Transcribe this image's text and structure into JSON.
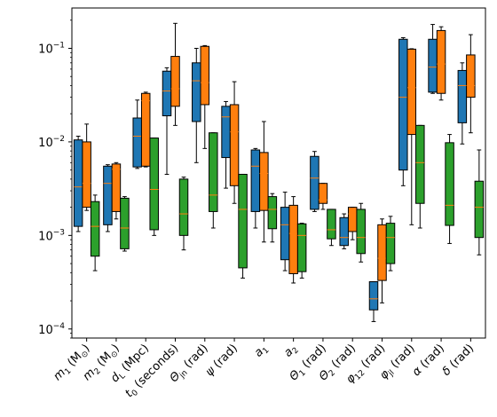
{
  "chart_data": {
    "type": "box",
    "y_scale": "log",
    "ylim": [
      8e-05,
      0.27
    ],
    "y_ticks": [
      {
        "value": 0.0001,
        "base": "10",
        "exp": "−4"
      },
      {
        "value": 0.001,
        "base": "10",
        "exp": "−3"
      },
      {
        "value": 0.01,
        "base": "10",
        "exp": "−2"
      },
      {
        "value": 0.1,
        "base": "10",
        "exp": "−1"
      }
    ],
    "categories": [
      {
        "main": "m",
        "sub": "1",
        "rest": " (M",
        "rest_sub": "⊙",
        "tail": ")"
      },
      {
        "main": "m",
        "sub": "2",
        "rest": " (M",
        "rest_sub": "⊙",
        "tail": ")"
      },
      {
        "main": "d",
        "sub": "L",
        "rest": " (Mpc)",
        "rest_sub": "",
        "tail": ""
      },
      {
        "main": "t",
        "sub": "0",
        "rest": " (seconds)",
        "rest_sub": "",
        "tail": ""
      },
      {
        "main": "Θ",
        "sub": "jn",
        "rest": " (rad)",
        "rest_sub": "",
        "tail": ""
      },
      {
        "main": "ψ",
        "sub": "",
        "rest": " (rad)",
        "rest_sub": "",
        "tail": ""
      },
      {
        "main": "a",
        "sub": "1",
        "rest": "",
        "rest_sub": "",
        "tail": ""
      },
      {
        "main": "a",
        "sub": "2",
        "rest": "",
        "rest_sub": "",
        "tail": ""
      },
      {
        "main": "Θ",
        "sub": "1",
        "rest": " (rad)",
        "rest_sub": "",
        "tail": ""
      },
      {
        "main": "Θ",
        "sub": "2",
        "rest": " (rad)",
        "rest_sub": "",
        "tail": ""
      },
      {
        "main": "φ",
        "sub": "12",
        "rest": " (rad)",
        "rest_sub": "",
        "tail": ""
      },
      {
        "main": "φ",
        "sub": "jl",
        "rest": " (rad)",
        "rest_sub": "",
        "tail": ""
      },
      {
        "main": "α",
        "sub": "",
        "rest": " (rad)",
        "rest_sub": "",
        "tail": ""
      },
      {
        "main": "δ",
        "sub": "",
        "rest": " (rad)",
        "rest_sub": "",
        "tail": ""
      }
    ],
    "colors": {
      "blue": "#1f77b4",
      "orange": "#ff7f0e",
      "green": "#2ca02c"
    },
    "series": [
      {
        "color_key": "blue",
        "boxes": [
          {
            "whislo": 0.0011,
            "q1": 0.00125,
            "med": 0.0033,
            "q3": 0.0105,
            "whishi": 0.0115
          },
          {
            "whislo": 0.0011,
            "q1": 0.0013,
            "med": 0.0036,
            "q3": 0.0055,
            "whishi": 0.0057
          },
          {
            "whislo": 0.0052,
            "q1": 0.0054,
            "med": 0.0115,
            "q3": 0.018,
            "whishi": 0.028
          },
          {
            "whislo": 0.0045,
            "q1": 0.019,
            "med": 0.035,
            "q3": 0.057,
            "whishi": 0.062
          },
          {
            "whislo": 0.006,
            "q1": 0.0165,
            "med": 0.045,
            "q3": 0.07,
            "whishi": 0.1
          },
          {
            "whislo": 0.0032,
            "q1": 0.0068,
            "med": 0.0185,
            "q3": 0.024,
            "whishi": 0.027
          },
          {
            "whislo": 0.0012,
            "q1": 0.0018,
            "med": 0.0055,
            "q3": 0.0082,
            "whishi": 0.0085
          },
          {
            "whislo": 0.00042,
            "q1": 0.00055,
            "med": 0.0013,
            "q3": 0.002,
            "whishi": 0.0029
          },
          {
            "whislo": 0.0018,
            "q1": 0.0019,
            "med": 0.0041,
            "q3": 0.007,
            "whishi": 0.0079
          },
          {
            "whislo": 0.00072,
            "q1": 0.00078,
            "med": 0.00095,
            "q3": 0.00155,
            "whishi": 0.0017
          },
          {
            "whislo": 0.00012,
            "q1": 0.00016,
            "med": 0.00021,
            "q3": 0.00032,
            "whishi": 0.00032
          },
          {
            "whislo": 0.0034,
            "q1": 0.005,
            "med": 0.03,
            "q3": 0.125,
            "whishi": 0.13
          },
          {
            "whislo": 0.033,
            "q1": 0.034,
            "med": 0.063,
            "q3": 0.125,
            "whishi": 0.18
          },
          {
            "whislo": 0.0095,
            "q1": 0.016,
            "med": 0.04,
            "q3": 0.058,
            "whishi": 0.07
          }
        ]
      },
      {
        "color_key": "orange",
        "boxes": [
          {
            "whislo": 0.00185,
            "q1": 0.002,
            "med": 0.0036,
            "q3": 0.01,
            "whishi": 0.0155
          },
          {
            "whislo": 0.0015,
            "q1": 0.0018,
            "med": 0.0051,
            "q3": 0.0058,
            "whishi": 0.006
          },
          {
            "whislo": 0.0054,
            "q1": 0.0055,
            "med": 0.0275,
            "q3": 0.033,
            "whishi": 0.034
          },
          {
            "whislo": 0.015,
            "q1": 0.024,
            "med": 0.037,
            "q3": 0.082,
            "whishi": 0.185
          },
          {
            "whislo": 0.0085,
            "q1": 0.025,
            "med": 0.043,
            "q3": 0.105,
            "whishi": 0.107
          },
          {
            "whislo": 0.0022,
            "q1": 0.0034,
            "med": 0.0128,
            "q3": 0.025,
            "whishi": 0.044
          },
          {
            "whislo": 0.00085,
            "q1": 0.00185,
            "med": 0.0046,
            "q3": 0.0077,
            "whishi": 0.0165
          },
          {
            "whislo": 0.00031,
            "q1": 0.00039,
            "med": 0.00105,
            "q3": 0.0021,
            "whishi": 0.0026
          },
          {
            "whislo": 0.0019,
            "q1": 0.0022,
            "med": 0.0024,
            "q3": 0.0036,
            "whishi": 0.0036
          },
          {
            "whislo": 0.0009,
            "q1": 0.0011,
            "med": 0.0017,
            "q3": 0.002,
            "whishi": 0.002
          },
          {
            "whislo": 0.00019,
            "q1": 0.00033,
            "med": 0.00057,
            "q3": 0.0013,
            "whishi": 0.0015
          },
          {
            "whislo": 0.0013,
            "q1": 0.012,
            "med": 0.038,
            "q3": 0.098,
            "whishi": 0.099
          },
          {
            "whislo": 0.028,
            "q1": 0.033,
            "med": 0.068,
            "q3": 0.155,
            "whishi": 0.17
          },
          {
            "whislo": 0.0125,
            "q1": 0.03,
            "med": 0.04,
            "q3": 0.085,
            "whishi": 0.14
          }
        ]
      },
      {
        "color_key": "green",
        "boxes": [
          {
            "whislo": 0.00042,
            "q1": 0.0006,
            "med": 0.00125,
            "q3": 0.0023,
            "whishi": 0.0027
          },
          {
            "whislo": 0.00068,
            "q1": 0.00072,
            "med": 0.0012,
            "q3": 0.0025,
            "whishi": 0.0026
          },
          {
            "whislo": 0.001,
            "q1": 0.00115,
            "med": 0.0031,
            "q3": 0.011,
            "whishi": 0.011
          },
          {
            "whislo": 0.0007,
            "q1": 0.001,
            "med": 0.0017,
            "q3": 0.004,
            "whishi": 0.0042
          },
          {
            "whislo": 0.0012,
            "q1": 0.0018,
            "med": 0.0027,
            "q3": 0.0125,
            "whishi": 0.0125
          },
          {
            "whislo": 0.00035,
            "q1": 0.00045,
            "med": 0.0019,
            "q3": 0.0045,
            "whishi": 0.0045
          },
          {
            "whislo": 0.00085,
            "q1": 0.00118,
            "med": 0.0019,
            "q3": 0.0026,
            "whishi": 0.0028
          },
          {
            "whislo": 0.00035,
            "q1": 0.00041,
            "med": 0.001,
            "q3": 0.00133,
            "whishi": 0.00135
          },
          {
            "whislo": 0.00078,
            "q1": 0.00092,
            "med": 0.00115,
            "q3": 0.0019,
            "whishi": 0.0019
          },
          {
            "whislo": 0.00052,
            "q1": 0.00064,
            "med": 0.00095,
            "q3": 0.0019,
            "whishi": 0.0022
          },
          {
            "whislo": 0.00042,
            "q1": 0.0005,
            "med": 0.00095,
            "q3": 0.00135,
            "whishi": 0.0016
          },
          {
            "whislo": 0.0012,
            "q1": 0.0022,
            "med": 0.006,
            "q3": 0.015,
            "whishi": 0.015
          },
          {
            "whislo": 0.00082,
            "q1": 0.00128,
            "med": 0.0021,
            "q3": 0.0098,
            "whishi": 0.012
          },
          {
            "whislo": 0.00062,
            "q1": 0.00095,
            "med": 0.002,
            "q3": 0.0038,
            "whishi": 0.0082
          }
        ]
      }
    ],
    "grid": false,
    "legend": "none"
  }
}
